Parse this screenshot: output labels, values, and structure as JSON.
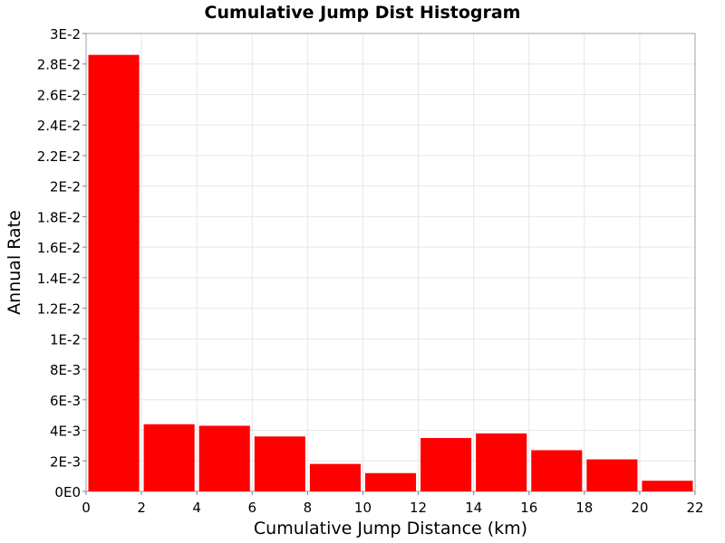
{
  "chart_data": {
    "type": "bar",
    "title": "Cumulative Jump Dist Histogram",
    "xlabel": "Cumulative Jump Distance (km)",
    "ylabel": "Annual Rate",
    "xlim": [
      0,
      22
    ],
    "ylim": [
      0,
      0.03
    ],
    "bin_width": 2,
    "x": [
      1,
      3,
      5,
      7,
      9,
      11,
      13,
      15,
      17,
      19,
      21
    ],
    "values": [
      0.0286,
      0.0044,
      0.0043,
      0.0036,
      0.0018,
      0.0012,
      0.0035,
      0.0038,
      0.0027,
      0.0021,
      0.0007
    ],
    "x_ticks": [
      0,
      2,
      4,
      6,
      8,
      10,
      12,
      14,
      16,
      18,
      20,
      22
    ],
    "x_tick_labels": [
      "0",
      "2",
      "4",
      "6",
      "8",
      "10",
      "12",
      "14",
      "16",
      "18",
      "20",
      "22"
    ],
    "y_ticks": [
      0,
      0.002,
      0.004,
      0.006,
      0.008,
      0.01,
      0.012,
      0.014,
      0.016,
      0.018,
      0.02,
      0.022,
      0.024,
      0.026,
      0.028,
      0.03
    ],
    "y_tick_labels": [
      "0E0",
      "2E-3",
      "4E-3",
      "6E-3",
      "8E-3",
      "1E-2",
      "1.2E-2",
      "1.4E-2",
      "1.6E-2",
      "1.8E-2",
      "2E-2",
      "2.2E-2",
      "2.4E-2",
      "2.6E-2",
      "2.8E-2",
      "3E-2"
    ],
    "grid": true,
    "legend": "none",
    "bar_color": "#ff0000",
    "grid_color": "#e6e6e6",
    "frame_color": "#a0a0a0"
  }
}
